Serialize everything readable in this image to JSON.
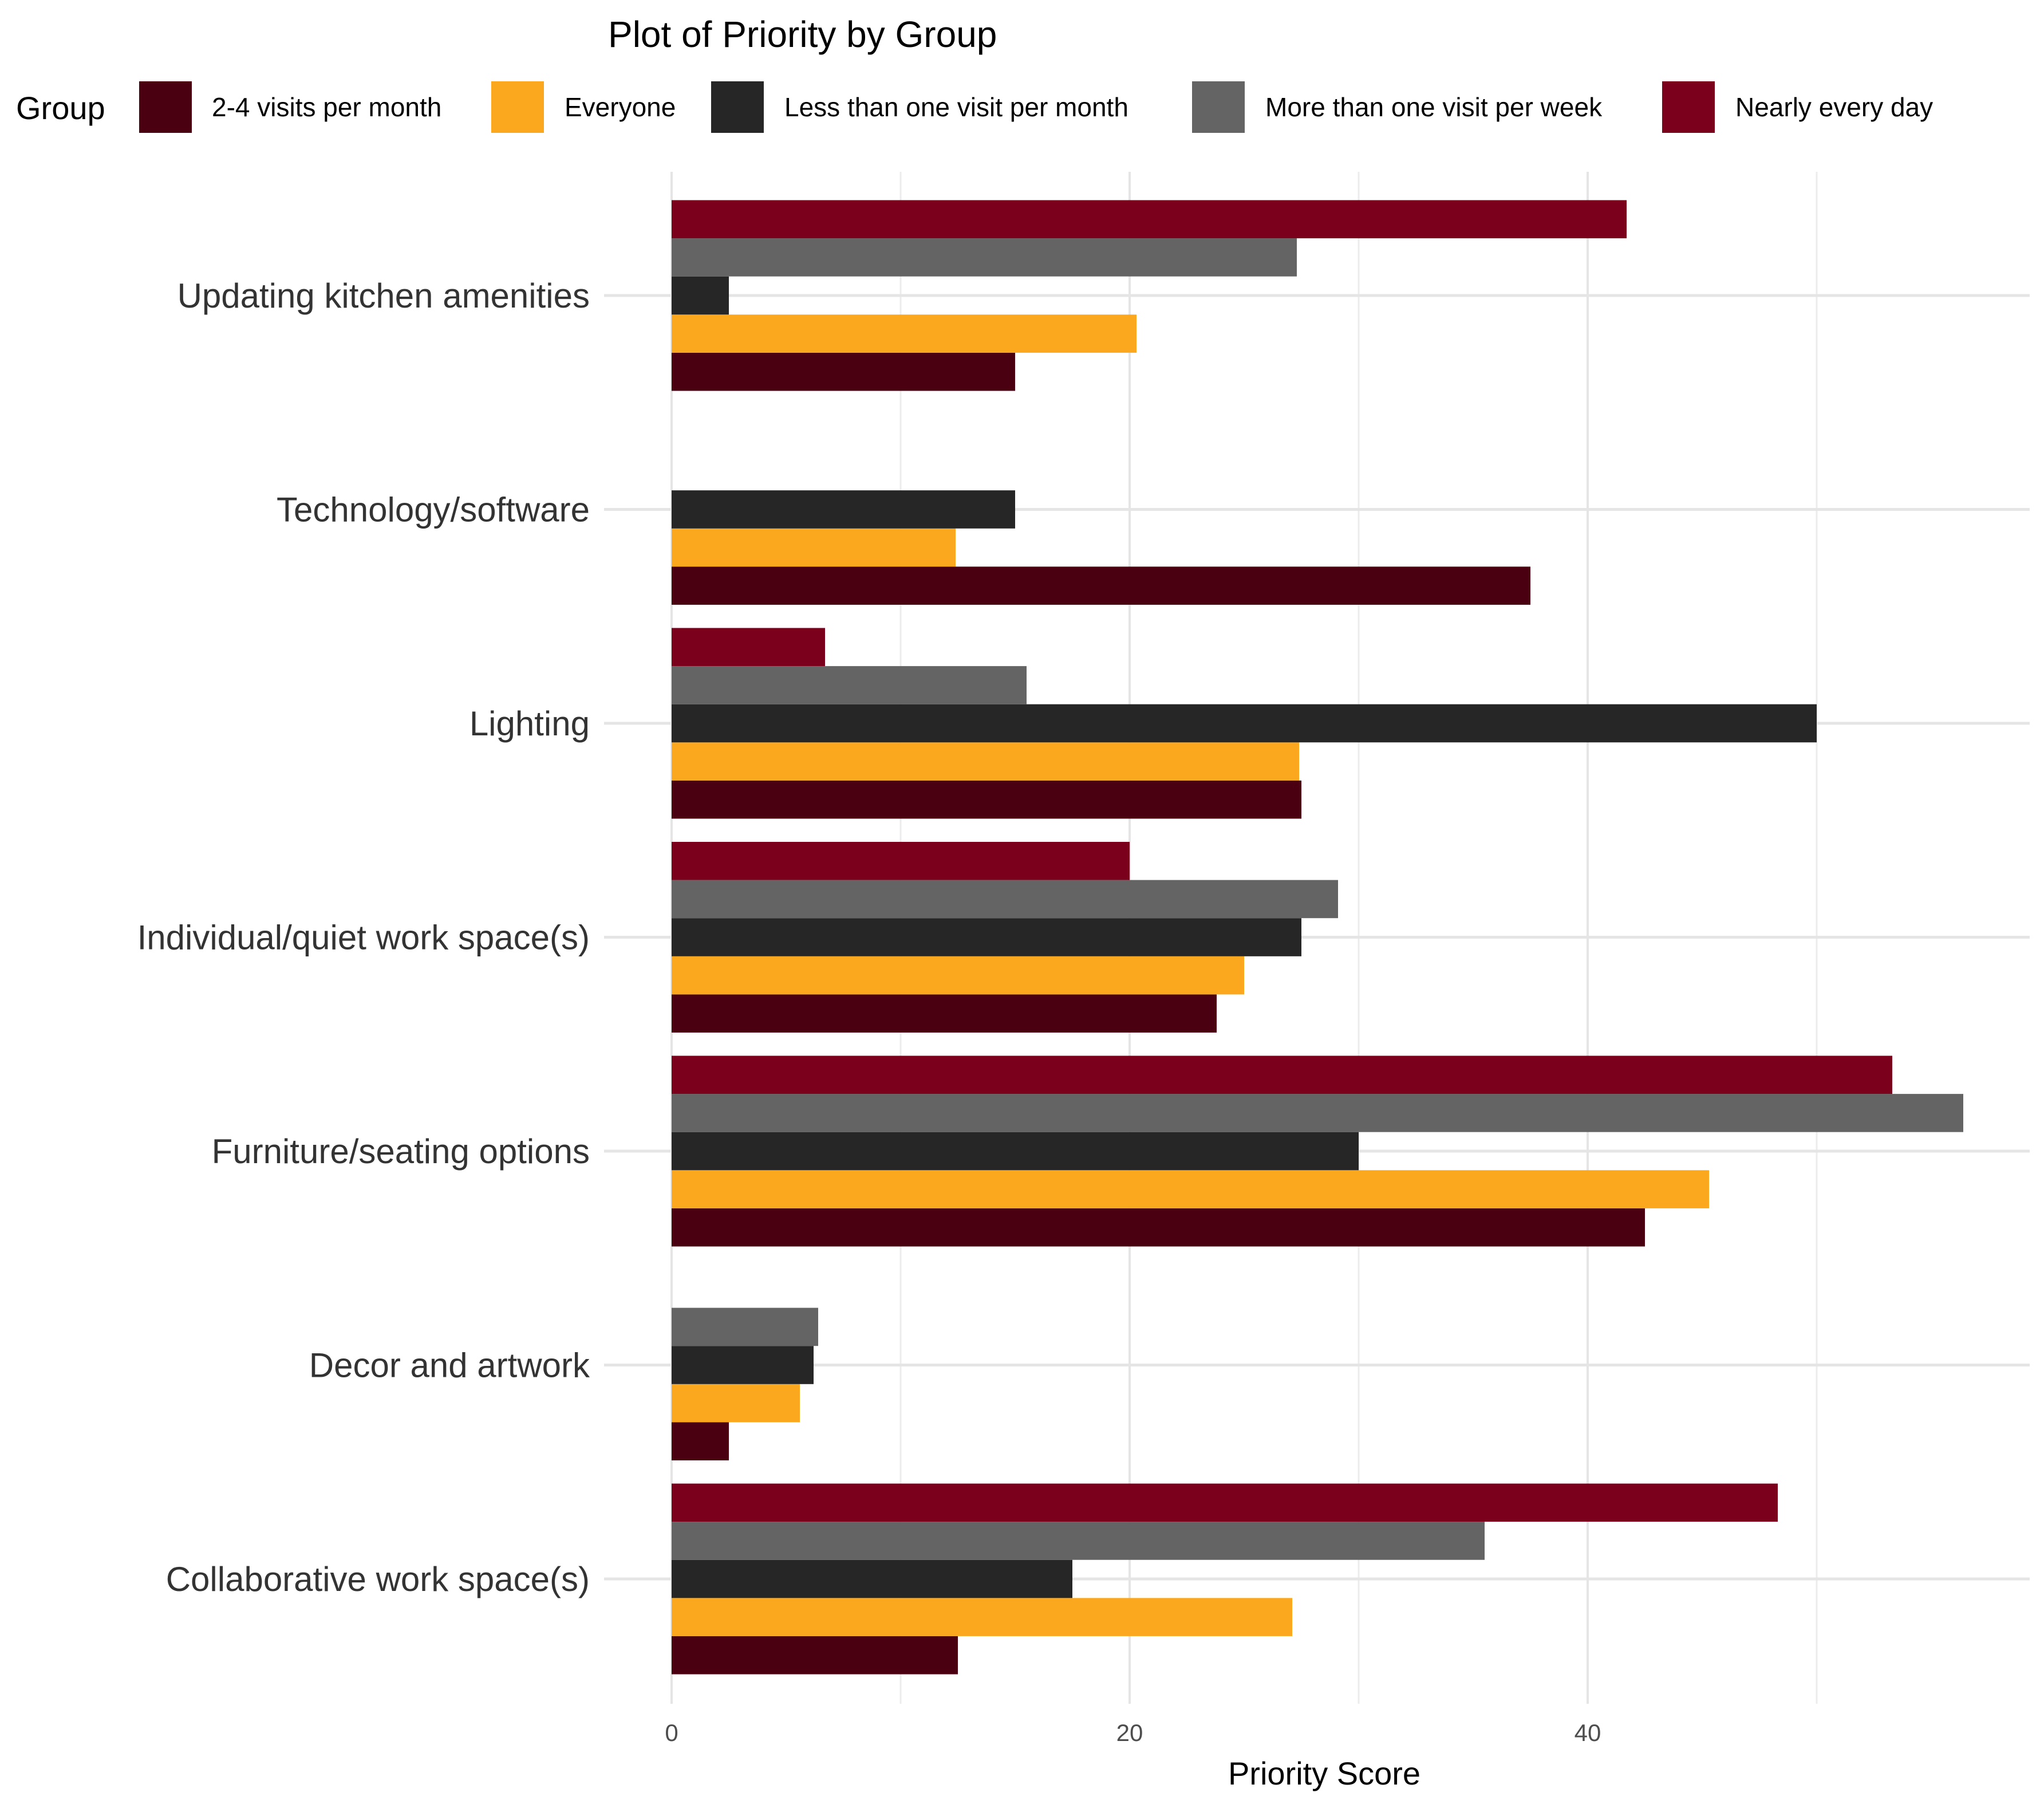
{
  "chart_data": {
    "type": "bar",
    "orientation": "horizontal",
    "title": "Plot of Priority by Group",
    "xlabel": "Priority Score",
    "ylabel": "",
    "xlim": [
      0,
      59
    ],
    "x_ticks": [
      0,
      20,
      40
    ],
    "grid": true,
    "legend_title": "Group",
    "legend_position": "top",
    "categories": [
      "Collaborative work space(s)",
      "Decor and artwork",
      "Furniture/seating options",
      "Individual/quiet work space(s)",
      "Lighting",
      "Technology/software",
      "Updating kitchen amenities"
    ],
    "series": [
      {
        "name": "2-4 visits per month",
        "color": "#4a0011",
        "values": [
          12.5,
          2.5,
          42.5,
          23.8,
          27.5,
          37.5,
          15.0
        ]
      },
      {
        "name": "Everyone",
        "color": "#fba81f",
        "values": [
          27.1,
          5.6,
          45.3,
          25.0,
          27.4,
          12.4,
          20.3
        ]
      },
      {
        "name": "Less than one visit per month",
        "color": "#262626",
        "values": [
          17.5,
          6.2,
          30.0,
          27.5,
          50.0,
          15.0,
          2.5
        ]
      },
      {
        "name": "More than one visit per week",
        "color": "#646464",
        "values": [
          35.5,
          6.4,
          56.4,
          29.1,
          15.5,
          null,
          27.3
        ]
      },
      {
        "name": "Nearly every day",
        "color": "#7a001c",
        "values": [
          48.3,
          null,
          53.3,
          20.0,
          6.7,
          null,
          41.7
        ]
      }
    ]
  }
}
